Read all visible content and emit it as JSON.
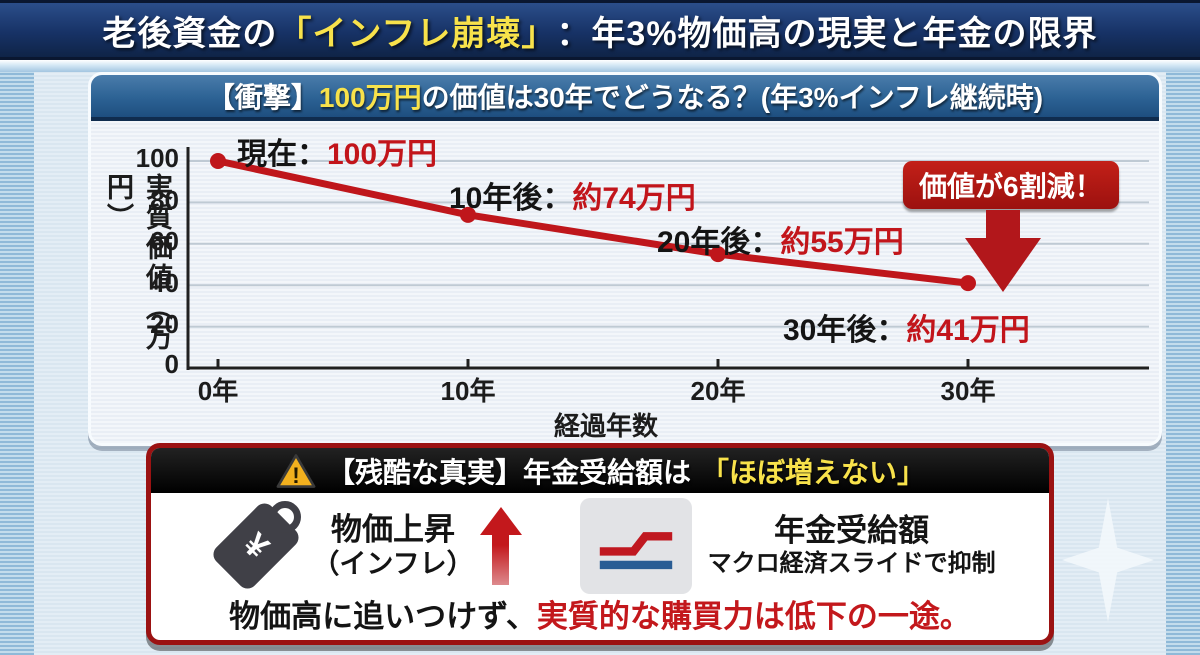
{
  "title_bar": {
    "prefix": "老後資金の",
    "highlight": "「インフレ崩壊」",
    "suffix": "：年3%物価高の現実と年金の限界"
  },
  "chart_panel": {
    "header": {
      "prefix": "【衝撃】",
      "highlight": "100万円",
      "suffix": "の価値は30年でどうなる？(年3%インフレ継続時)"
    },
    "badge": "価値が6割減！",
    "annotations": [
      {
        "label": "現在：",
        "value": "100万円"
      },
      {
        "label": "10年後：",
        "value": "約74万円"
      },
      {
        "label": "20年後：",
        "value": "約55万円"
      },
      {
        "label": "30年後：",
        "value": "約41万円"
      }
    ]
  },
  "chart_data": {
    "type": "line",
    "title": "【衝撃】100万円の価値は30年でどうなる？(年3%インフレ継続時)",
    "x": [
      0,
      10,
      20,
      30
    ],
    "x_tick_labels": [
      "0年",
      "10年",
      "20年",
      "30年"
    ],
    "values": [
      100,
      74,
      55,
      41
    ],
    "xlabel": "経過年数",
    "ylabel": "実質価値（万円）",
    "ylim": [
      0,
      100
    ],
    "yticks": [
      0,
      20,
      40,
      60,
      80,
      100
    ],
    "grid": "horizontal",
    "legend": "none",
    "line_color": "#bf161b",
    "annotations": [
      "現在：100万円",
      "10年後：約74万円",
      "20年後：約55万円",
      "30年後：約41万円",
      "価値が6割減！"
    ]
  },
  "warning": {
    "header": {
      "prefix": "【残酷な真実】年金受給額は",
      "highlight": "「ほぼ増えない」",
      "icon_mark": "!"
    },
    "price": {
      "tag_symbol": "¥",
      "title": "物価上昇",
      "subtitle": "（インフレ）"
    },
    "pension": {
      "title": "年金受給額",
      "subtitle": "マクロ経済スライドで抑制"
    },
    "footer": {
      "black": "物価高に追いつけず、",
      "red": "実質的な購買力は低下の一途。"
    }
  },
  "icons": {
    "warning-triangle-icon": "amber triangle with exclamation mark",
    "price-tag-icon": "dark tag with yen symbol and ring",
    "pension-chart-icon": "red stepped line over flat blue line",
    "up-arrow-icon": "red arrow pointing up",
    "down-arrow-icon": "red arrow pointing down",
    "sparkle-icon": "soft four-point star"
  },
  "colors": {
    "title_navy": "#173266",
    "highlight_yellow": "#f8e24b",
    "panel_header_blue": "#2c6294",
    "line_red": "#bf161b",
    "badge_red": "#a81512",
    "warning_border_red": "#9b1212",
    "footer_red": "#c3181c",
    "pension_blue": "#2a5d94"
  }
}
